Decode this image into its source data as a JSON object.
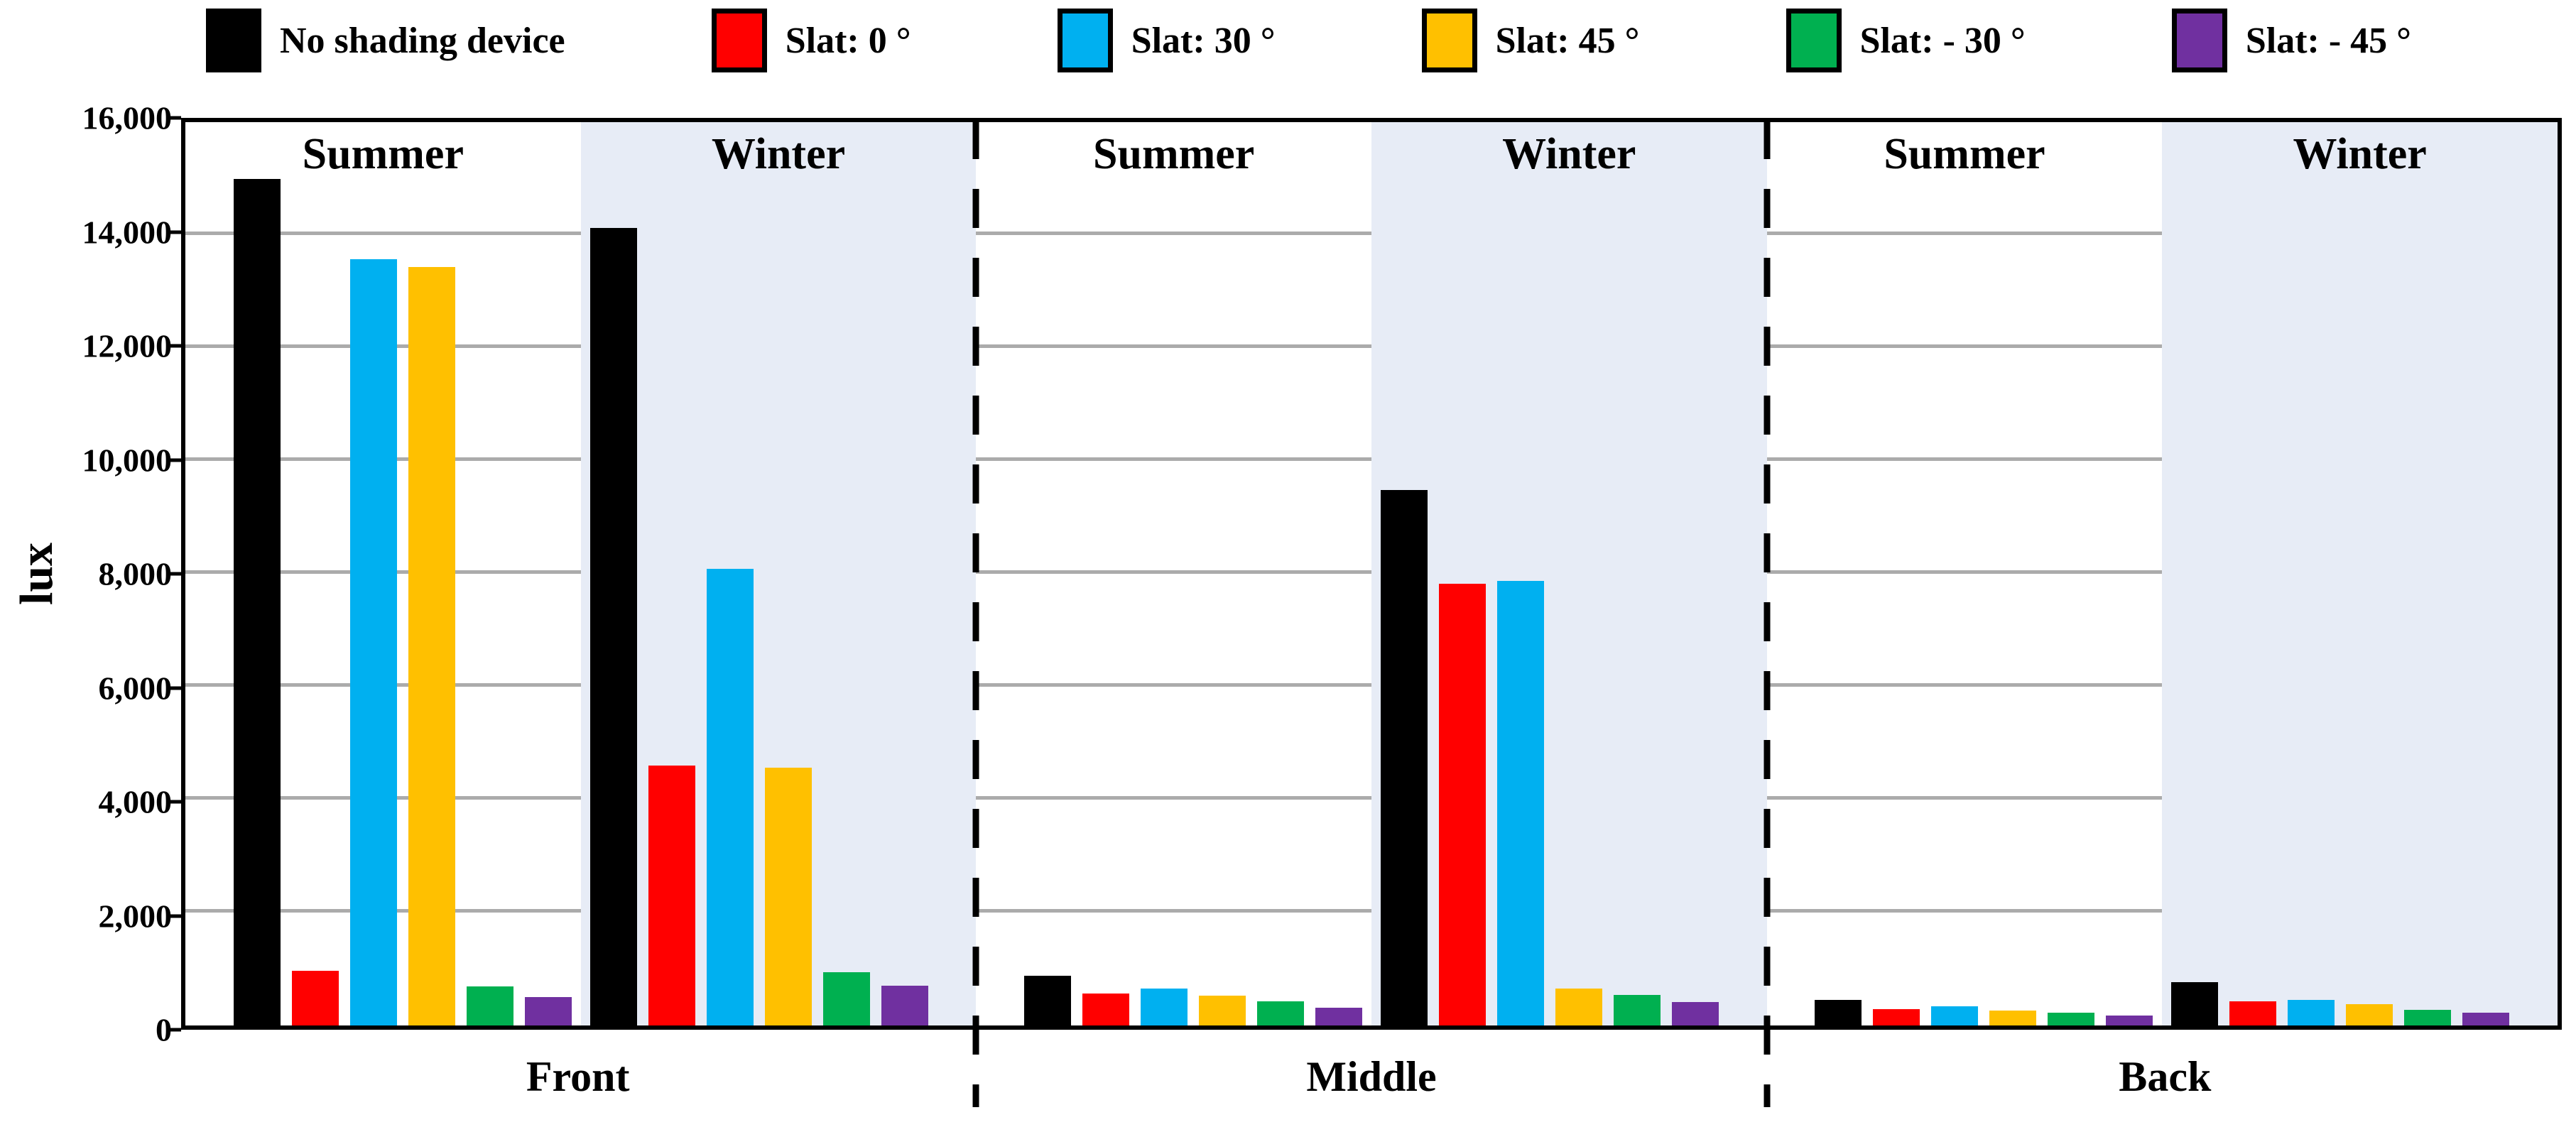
{
  "legend": {
    "items": [
      {
        "label": "No shading device",
        "color": "#000000"
      },
      {
        "label": "Slat: 0 °",
        "color": "#FF0000"
      },
      {
        "label": "Slat: 30 °",
        "color": "#00B0F0"
      },
      {
        "label": "Slat: 45 °",
        "color": "#FFC000"
      },
      {
        "label": "Slat: - 30 °",
        "color": "#00B050"
      },
      {
        "label": "Slat: - 45 °",
        "color": "#7030A0"
      }
    ]
  },
  "chart_data": {
    "type": "bar",
    "title": "",
    "ylabel": "lux",
    "xlabel": "",
    "ylim": [
      0,
      16000
    ],
    "ytick_step": 2000,
    "yticks": [
      "0",
      "2,000",
      "4,000",
      "6,000",
      "8,000",
      "10,000",
      "12,000",
      "14,000",
      "16,000"
    ],
    "grid": true,
    "gridline_color": "#ABABAB",
    "winter_bg_color": "#E7ECF6",
    "legend_position": "top",
    "series": [
      {
        "name": "No shading device",
        "color": "#000000"
      },
      {
        "name": "Slat: 0 °",
        "color": "#FF0000"
      },
      {
        "name": "Slat: 30 °",
        "color": "#00B0F0"
      },
      {
        "name": "Slat: 45 °",
        "color": "#FFC000"
      },
      {
        "name": "Slat: - 30 °",
        "color": "#00B050"
      },
      {
        "name": "Slat: - 45 °",
        "color": "#7030A0"
      }
    ],
    "panels": [
      {
        "label": "Front",
        "groups": [
          {
            "season": "Summer",
            "values": [
              15000,
              970,
              13570,
              13430,
              690,
              500
            ]
          },
          {
            "season": "Winter",
            "values": [
              14120,
              4600,
              8090,
              4560,
              940,
              700
            ]
          }
        ]
      },
      {
        "label": "Middle",
        "groups": [
          {
            "season": "Summer",
            "values": [
              880,
              560,
              650,
              530,
              430,
              320
            ]
          },
          {
            "season": "Winter",
            "values": [
              9480,
              7820,
              7870,
              650,
              545,
              410
            ]
          }
        ]
      },
      {
        "label": "Back",
        "groups": [
          {
            "season": "Summer",
            "values": [
              450,
              295,
              345,
              260,
              230,
              180
            ]
          },
          {
            "season": "Winter",
            "values": [
              770,
              430,
              455,
              380,
              280,
              230
            ]
          }
        ]
      }
    ]
  }
}
